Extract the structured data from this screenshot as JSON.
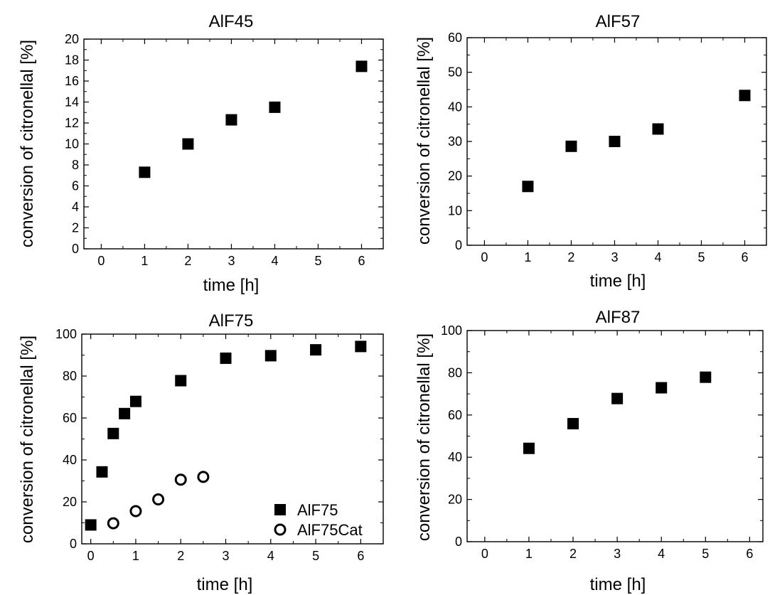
{
  "chart_data": [
    {
      "type": "scatter",
      "title": "AlF45",
      "xlabel": "time [h]",
      "ylabel": "conversion of citronellal [%]",
      "xlim": [
        -0.4,
        6.5
      ],
      "ylim": [
        0,
        20
      ],
      "xticks": [
        0,
        1,
        2,
        3,
        4,
        5,
        6
      ],
      "yticks": [
        0,
        2,
        4,
        6,
        8,
        10,
        12,
        14,
        16,
        18,
        20
      ],
      "legend": [],
      "series": [
        {
          "marker": "filled-square",
          "x": [
            1,
            2,
            3,
            4,
            6
          ],
          "y": [
            7.3,
            10.0,
            12.3,
            13.5,
            17.4
          ]
        }
      ]
    },
    {
      "type": "scatter",
      "title": "AlF57",
      "xlabel": "time [h]",
      "ylabel": "conversion of citronellal [%]",
      "xlim": [
        -0.4,
        6.5
      ],
      "ylim": [
        0,
        60
      ],
      "xticks": [
        0,
        1,
        2,
        3,
        4,
        5,
        6
      ],
      "yticks": [
        0,
        10,
        20,
        30,
        40,
        50,
        60
      ],
      "legend": [],
      "series": [
        {
          "marker": "filled-square",
          "x": [
            1,
            2,
            3,
            4,
            6
          ],
          "y": [
            17.0,
            28.6,
            30.0,
            33.6,
            43.3
          ]
        }
      ]
    },
    {
      "type": "scatter",
      "title": "AlF75",
      "xlabel": "time [h]",
      "ylabel": "conversion of citronellal [%]",
      "xlim": [
        -0.2,
        6.5
      ],
      "ylim": [
        0,
        100
      ],
      "xticks": [
        0,
        1,
        2,
        3,
        4,
        5,
        6
      ],
      "yticks": [
        0,
        20,
        40,
        60,
        80,
        100
      ],
      "legend_position": "bottom-right",
      "series": [
        {
          "name": "AlF75",
          "marker": "filled-square",
          "x": [
            0,
            0.25,
            0.5,
            0.75,
            1,
            2,
            3,
            4,
            5,
            6
          ],
          "y": [
            9.0,
            34.3,
            52.6,
            62.1,
            67.9,
            77.8,
            88.5,
            89.7,
            92.5,
            94.1
          ]
        },
        {
          "name": "AlF75Cat",
          "marker": "open-circle",
          "x": [
            0.5,
            1,
            1.5,
            2,
            2.5
          ],
          "y": [
            9.8,
            15.6,
            21.2,
            30.6,
            31.9
          ]
        }
      ]
    },
    {
      "type": "scatter",
      "title": "AlF87",
      "xlabel": "time [h]",
      "ylabel": "conversion of citronellal [%]",
      "xlim": [
        -0.4,
        6.3
      ],
      "ylim": [
        0,
        100
      ],
      "xticks": [
        0,
        1,
        2,
        3,
        4,
        5,
        6
      ],
      "yticks": [
        0,
        20,
        40,
        60,
        80,
        100
      ],
      "legend": [],
      "series": [
        {
          "marker": "filled-square",
          "x": [
            1,
            2,
            3,
            4,
            5
          ],
          "y": [
            44.2,
            55.9,
            67.8,
            72.9,
            77.9
          ]
        }
      ]
    }
  ]
}
